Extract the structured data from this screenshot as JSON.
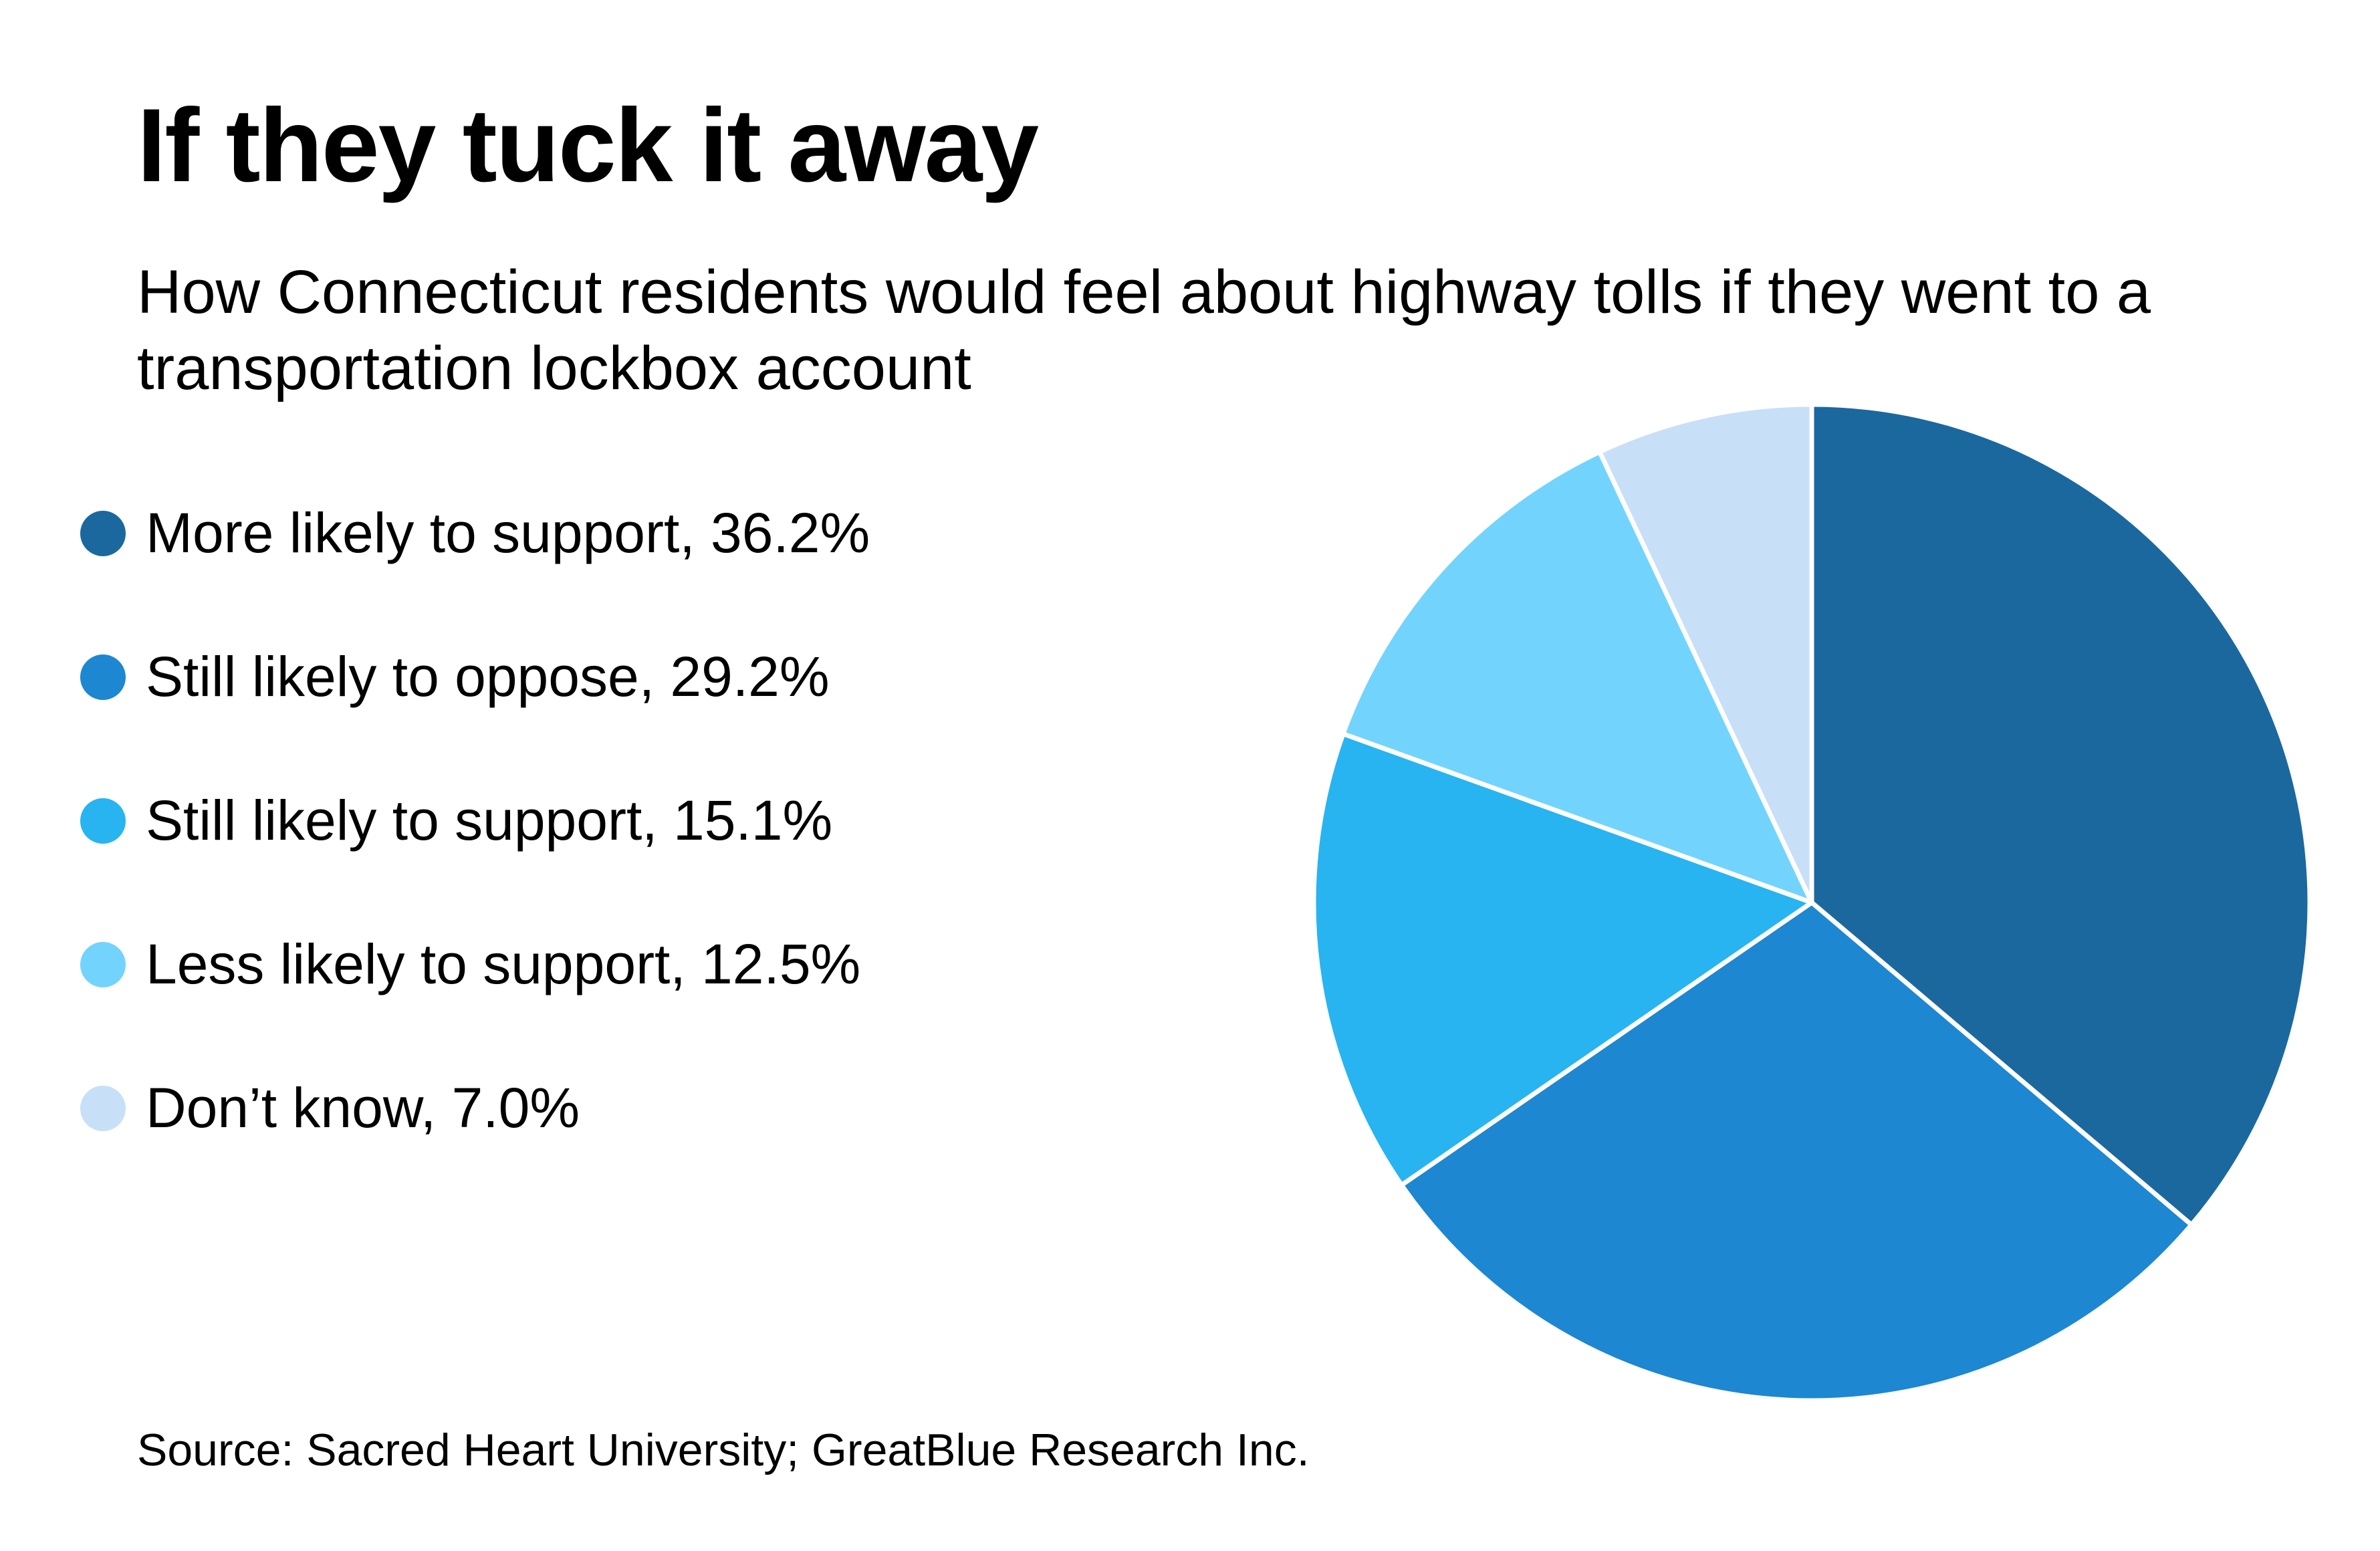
{
  "chart_data": {
    "type": "pie",
    "title": "If they tuck it away",
    "subtitle": "How Connecticut residents would feel about highway tolls if they went to a transportation lockbox account",
    "source": "Source: Sacred Heart University; GreatBlue Research Inc.",
    "legend_position": "left",
    "slices": [
      {
        "label": "More likely to support",
        "value": 36.2,
        "display": "More likely to support, 36.2%",
        "color": "#1b689f"
      },
      {
        "label": "Still likely to oppose",
        "value": 29.2,
        "display": "Still likely to oppose, 29.2%",
        "color": "#1d87d1"
      },
      {
        "label": "Still likely to support",
        "value": 15.1,
        "display": "Still likely to support, 15.1%",
        "color": "#27b4f1"
      },
      {
        "label": "Less likely to support",
        "value": 12.5,
        "display": "Less likely to support, 12.5%",
        "color": "#72d4fd"
      },
      {
        "label": "Don’t know",
        "value": 7.0,
        "display": "Don’t know, 7.0%",
        "color": "#c8dff8"
      }
    ]
  }
}
